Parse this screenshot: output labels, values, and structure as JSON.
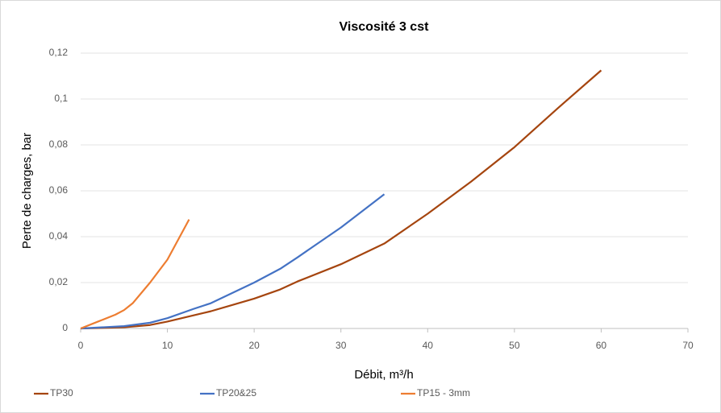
{
  "chart_data": {
    "type": "line",
    "title": "Viscosité 3 cst",
    "x_label": "Débit, m³/h",
    "y_label": "Perte de charges, bar",
    "series": [
      {
        "name": "TP30",
        "color": "#a5450f",
        "x": [
          0,
          5,
          8,
          10,
          15,
          20,
          23,
          25,
          30,
          35,
          40,
          45,
          50,
          55,
          60
        ],
        "values": [
          0,
          0.0005,
          0.0015,
          0.003,
          0.0075,
          0.013,
          0.017,
          0.0205,
          0.028,
          0.037,
          0.05,
          0.064,
          0.079,
          0.096,
          0.1125
        ]
      },
      {
        "name": "TP20&25",
        "color": "#4472c4",
        "x": [
          0,
          5,
          8,
          10,
          13,
          15,
          20,
          23,
          25,
          30,
          35
        ],
        "values": [
          0,
          0.001,
          0.0025,
          0.0045,
          0.0085,
          0.011,
          0.02,
          0.026,
          0.031,
          0.044,
          0.0585
        ]
      },
      {
        "name": "TP15 - 3mm",
        "color": "#ed7d31",
        "x": [
          0,
          2,
          4,
          5,
          6,
          8,
          10,
          12.5
        ],
        "values": [
          0,
          0.003,
          0.006,
          0.008,
          0.011,
          0.02,
          0.03,
          0.0475
        ]
      }
    ],
    "xlim": [
      0,
      70
    ],
    "xticks": [
      0,
      10,
      20,
      30,
      40,
      50,
      60,
      70
    ],
    "ylim": [
      0,
      0.12
    ],
    "yticks": [
      0,
      {
        "value": 0.02,
        "label": "0,02"
      },
      {
        "value": 0.04,
        "label": "0,04"
      },
      {
        "value": 0.06,
        "label": "0,06"
      },
      {
        "value": 0.08,
        "label": "0,08"
      },
      {
        "value": 0.1,
        "label": "0,1"
      },
      {
        "value": 0.12,
        "label": "0,12"
      }
    ],
    "grid": true,
    "legend": "bottom"
  }
}
